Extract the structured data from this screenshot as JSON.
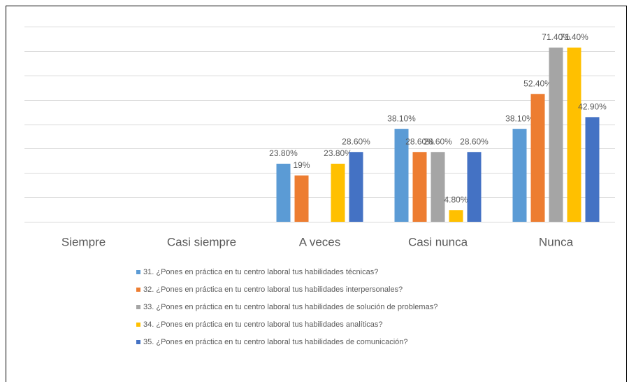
{
  "chart_data": {
    "type": "bar",
    "categories": [
      "Siempre",
      "Casi siempre",
      "A veces",
      "Casi nunca",
      "Nunca"
    ],
    "ylim": [
      0,
      80
    ],
    "yticks": [
      0,
      10,
      20,
      30,
      40,
      50,
      60,
      70,
      80
    ],
    "grid": true,
    "series": [
      {
        "name": "31. ¿Pones en práctica en tu centro laboral tus habilidades técnicas?",
        "color": "#5b9bd5",
        "values": [
          null,
          null,
          23.8,
          38.1,
          38.1
        ],
        "value_labels": [
          null,
          null,
          "23.80%",
          "38.10%",
          "38.10%"
        ]
      },
      {
        "name": "32. ¿Pones en práctica en tu centro laboral tus habilidades interpersonales?",
        "color": "#ed7d31",
        "values": [
          null,
          null,
          19,
          28.6,
          52.4
        ],
        "value_labels": [
          null,
          null,
          "19%",
          "28.60%",
          "52.40%"
        ]
      },
      {
        "name": "33. ¿Pones en práctica en tu centro laboral tus habilidades de solución de problemas?",
        "color": "#a5a5a5",
        "values": [
          null,
          null,
          null,
          28.6,
          71.4
        ],
        "value_labels": [
          null,
          null,
          null,
          "28.60%",
          "71.40%"
        ]
      },
      {
        "name": "34. ¿Pones en práctica en tu centro laboral tus habilidades analíticas?",
        "color": "#ffc000",
        "values": [
          null,
          null,
          23.8,
          4.8,
          71.4
        ],
        "value_labels": [
          null,
          null,
          "23.80%",
          "4.80%",
          "71.40%"
        ]
      },
      {
        "name": "35. ¿Pones en práctica en tu centro laboral tus habilidades de comunicación?",
        "color": "#4472c4",
        "values": [
          null,
          null,
          28.6,
          28.6,
          42.9
        ],
        "value_labels": [
          null,
          null,
          "28.60%",
          "28.60%",
          "42.90%"
        ]
      }
    ]
  }
}
